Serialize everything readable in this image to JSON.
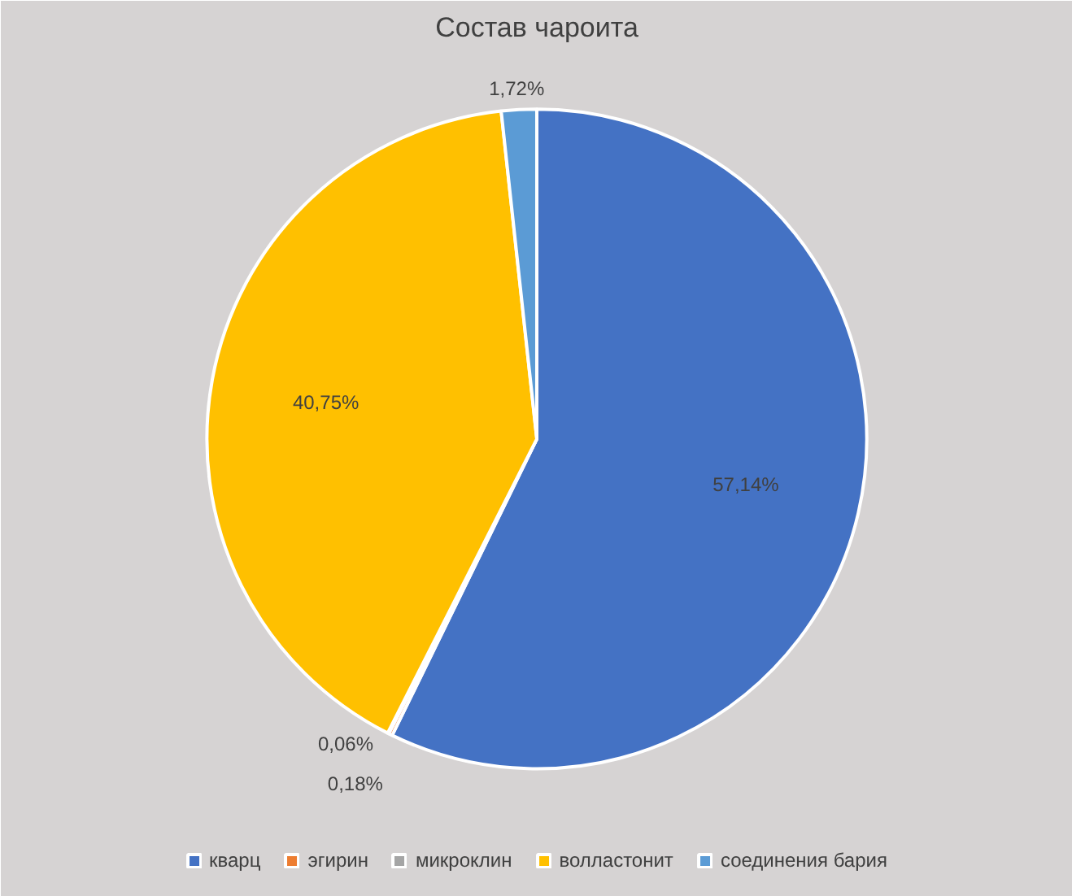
{
  "chart_data": {
    "type": "pie",
    "title": "Состав чароита",
    "categories": [
      "кварц",
      "эгирин",
      "микроклин",
      "волластонит",
      "соединения бария"
    ],
    "values": [
      57.14,
      0.18,
      0.06,
      40.75,
      1.72
    ],
    "value_labels": [
      "57,14%",
      "0,18%",
      "0,06%",
      "40,75%",
      "1,72%"
    ],
    "colors": [
      "#4472c4",
      "#ed7d31",
      "#a5a5a5",
      "#ffc000",
      "#5b9bd5"
    ],
    "legend": "bottom"
  }
}
